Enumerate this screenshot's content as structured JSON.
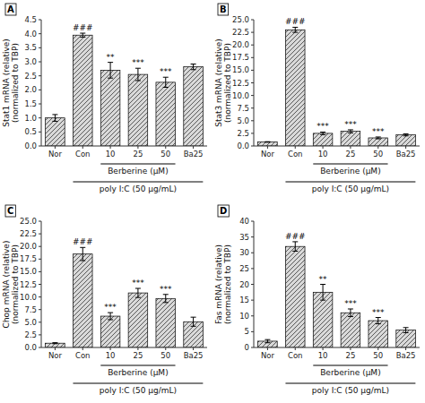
{
  "chart_data": [
    {
      "type": "bar",
      "title": "A",
      "ylabel": "Stat1 mRNA (relative)\n(normalized to TBP)",
      "categories": [
        "Nor",
        "Con",
        "10",
        "25",
        "50",
        "Ba25"
      ],
      "values": [
        1.0,
        3.95,
        2.7,
        2.55,
        2.27,
        2.82
      ],
      "errors": [
        0.12,
        0.07,
        0.28,
        0.22,
        0.18,
        0.1
      ],
      "significance": [
        null,
        "###",
        "**",
        "***",
        "***",
        null
      ],
      "annotations": [
        {
          "text": "Berberine (μM)",
          "from": "10",
          "to": "50"
        },
        {
          "text": "poly I:C (50 μg/mL)",
          "from": "Con",
          "to": "Ba25"
        }
      ],
      "color": "#d9d9d9",
      "grid": false,
      "ylim": [
        0,
        4.5
      ],
      "yticks": [
        {
          "value": 0,
          "label": "0.0"
        },
        0.5,
        {
          "value": 1,
          "label": "1.0"
        },
        1.5,
        {
          "value": 2,
          "label": "2.0"
        },
        2.5,
        {
          "value": 3,
          "label": "3.0"
        },
        3.5,
        {
          "value": 4,
          "label": "4.0"
        },
        4.5
      ]
    },
    {
      "type": "bar",
      "title": "B",
      "ylabel": "Stat3 mRNA (relative)\n(normalized to TBP)",
      "categories": [
        "Nor",
        "Con",
        "10",
        "25",
        "50",
        "Ba25"
      ],
      "values": [
        0.8,
        23.0,
        2.5,
        2.9,
        1.6,
        2.2
      ],
      "errors": [
        0.05,
        0.5,
        0.25,
        0.3,
        0.18,
        0.2
      ],
      "significance": [
        null,
        "###",
        "***",
        "***",
        "***",
        null
      ],
      "annotations": [
        {
          "text": "Berberine (μM)",
          "from": "10",
          "to": "50"
        },
        {
          "text": "poly I:C (50 μg/mL)",
          "from": "Con",
          "to": "Ba25"
        }
      ],
      "color": "#d9d9d9",
      "grid": false,
      "ylim": [
        0,
        25
      ],
      "yticks": [
        {
          "value": 0,
          "label": "0.0"
        },
        2.5,
        {
          "value": 5,
          "label": "5.0"
        },
        7.5,
        {
          "value": 10,
          "label": "10.0"
        },
        12.5,
        {
          "value": 15,
          "label": "15.0"
        },
        17.5,
        {
          "value": 20,
          "label": "20.0"
        },
        22.5,
        {
          "value": 25,
          "label": "25.0"
        }
      ]
    },
    {
      "type": "bar",
      "title": "C",
      "ylabel": "Chop mRNA (relative)\n(normalized to TBP)",
      "categories": [
        "Nor",
        "Con",
        "10",
        "25",
        "50",
        "Ba25"
      ],
      "values": [
        0.85,
        18.5,
        6.2,
        10.8,
        9.7,
        5.1
      ],
      "errors": [
        0.1,
        1.3,
        0.7,
        0.9,
        0.8,
        0.9
      ],
      "significance": [
        null,
        "###",
        "***",
        "***",
        "***",
        null
      ],
      "annotations": [
        {
          "text": "Berberine (μM)",
          "from": "10",
          "to": "50"
        },
        {
          "text": "poly I:C (50 μg/mL)",
          "from": "Con",
          "to": "Ba25"
        }
      ],
      "color": "#d9d9d9",
      "grid": false,
      "ylim": [
        0,
        25
      ],
      "yticks": [
        {
          "value": 0,
          "label": "0.0"
        },
        2.5,
        {
          "value": 5,
          "label": "5.0"
        },
        7.5,
        {
          "value": 10,
          "label": "10.0"
        },
        12.5,
        {
          "value": 15,
          "label": "15.0"
        },
        17.5,
        {
          "value": 20,
          "label": "20.0"
        },
        22.5,
        {
          "value": 25,
          "label": "25.0"
        }
      ]
    },
    {
      "type": "bar",
      "title": "D",
      "ylabel": "Fas mRNA (relative)\n(normalized to TBP)",
      "categories": [
        "Nor",
        "Con",
        "10",
        "25",
        "50",
        "Ba25"
      ],
      "values": [
        2.0,
        32.0,
        17.5,
        11.0,
        8.5,
        5.5
      ],
      "errors": [
        0.5,
        1.5,
        2.5,
        1.2,
        1.0,
        0.8
      ],
      "significance": [
        null,
        "###",
        "**",
        "***",
        "***",
        null
      ],
      "annotations": [
        {
          "text": "Berberine (μM)",
          "from": "10",
          "to": "50"
        },
        {
          "text": "poly I:C (50 μg/mL)",
          "from": "Con",
          "to": "Ba25"
        }
      ],
      "color": "#d9d9d9",
      "grid": false,
      "ylim": [
        0,
        40
      ],
      "yticks": [
        0,
        5,
        10,
        15,
        20,
        25,
        30,
        35,
        40
      ]
    }
  ]
}
